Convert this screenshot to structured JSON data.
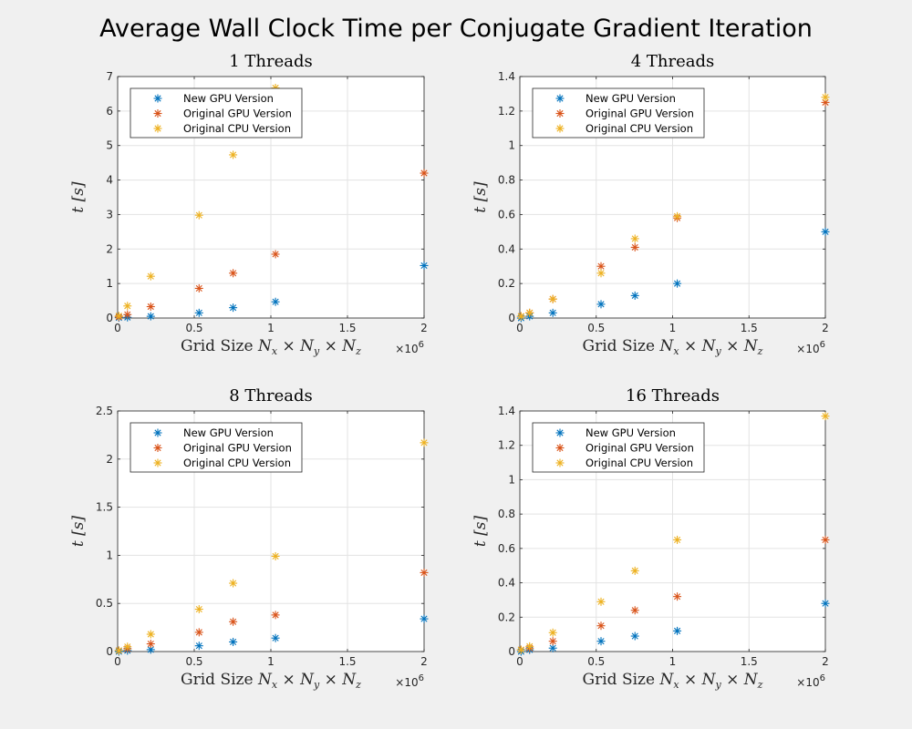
{
  "suptitle": "Average Wall Clock Time per Conjugate Gradient Iteration",
  "colors": {
    "new_gpu": "#0072BD",
    "orig_gpu": "#D95319",
    "orig_cpu": "#EDB120"
  },
  "chart_data": [
    {
      "type": "scatter",
      "title": "1 Threads",
      "xlabel": "Grid Size",
      "xlabel_math": "N_x × N_y × N_z",
      "ylabel": "t [s]",
      "x_exponent_label": "×10^6",
      "xlim": [
        0,
        2000000
      ],
      "ylim": [
        0,
        7
      ],
      "xticks": [
        0,
        0.5,
        1,
        1.5,
        2
      ],
      "yticks": [
        0,
        1,
        2,
        3,
        4,
        5,
        6,
        7
      ],
      "yticklabels": [
        "0",
        "1",
        "2",
        "3",
        "4",
        "5",
        "6",
        "7"
      ],
      "grid": true,
      "legend_position": "top-left",
      "marker": "*",
      "x": [
        8000,
        64000,
        216000,
        531441,
        753571,
        1030301,
        2000000
      ],
      "series": [
        {
          "name": "New GPU Version",
          "y": [
            0.01,
            0.02,
            0.05,
            0.15,
            0.3,
            0.47,
            1.52
          ]
        },
        {
          "name": "Original GPU Version",
          "y": [
            0.03,
            0.1,
            0.33,
            0.86,
            1.3,
            1.85,
            4.2
          ]
        },
        {
          "name": "Original CPU Version",
          "y": [
            0.06,
            0.35,
            1.21,
            2.98,
            4.73,
            6.67,
            null
          ]
        }
      ]
    },
    {
      "type": "scatter",
      "title": "4 Threads",
      "xlabel": "Grid Size",
      "xlabel_math": "N_x × N_y × N_z",
      "ylabel": "t [s]",
      "x_exponent_label": "×10^6",
      "xlim": [
        0,
        2000000
      ],
      "ylim": [
        0,
        1.4
      ],
      "xticks": [
        0,
        0.5,
        1,
        1.5,
        2
      ],
      "yticks": [
        0,
        0.2,
        0.4,
        0.6,
        0.8,
        1,
        1.2,
        1.4
      ],
      "yticklabels": [
        "0",
        "0.2",
        "0.4",
        "0.6",
        "0.8",
        "1",
        "1.2",
        "1.4"
      ],
      "grid": true,
      "legend_position": "top-left",
      "marker": "*",
      "x": [
        8000,
        64000,
        216000,
        531441,
        753571,
        1030301,
        2000000
      ],
      "series": [
        {
          "name": "New GPU Version",
          "y": [
            0.0,
            0.01,
            0.03,
            0.08,
            0.13,
            0.2,
            0.5
          ]
        },
        {
          "name": "Original GPU Version",
          "y": [
            0.01,
            0.03,
            0.11,
            0.3,
            0.41,
            0.58,
            1.25
          ]
        },
        {
          "name": "Original CPU Version",
          "y": [
            0.01,
            0.03,
            0.11,
            0.26,
            0.46,
            0.59,
            1.28
          ]
        }
      ]
    },
    {
      "type": "scatter",
      "title": "8 Threads",
      "xlabel": "Grid Size",
      "xlabel_math": "N_x × N_y × N_z",
      "ylabel": "t [s]",
      "x_exponent_label": "×10^6",
      "xlim": [
        0,
        2000000
      ],
      "ylim": [
        0,
        2.5
      ],
      "xticks": [
        0,
        0.5,
        1,
        1.5,
        2
      ],
      "yticks": [
        0,
        0.5,
        1,
        1.5,
        2,
        2.5
      ],
      "yticklabels": [
        "0",
        "0.5",
        "1",
        "1.5",
        "2",
        "2.5"
      ],
      "grid": true,
      "legend_position": "top-left",
      "marker": "*",
      "x": [
        8000,
        64000,
        216000,
        531441,
        753571,
        1030301,
        2000000
      ],
      "series": [
        {
          "name": "New GPU Version",
          "y": [
            0.0,
            0.01,
            0.02,
            0.06,
            0.1,
            0.14,
            0.34
          ]
        },
        {
          "name": "Original GPU Version",
          "y": [
            0.01,
            0.03,
            0.08,
            0.2,
            0.31,
            0.38,
            0.82
          ]
        },
        {
          "name": "Original CPU Version",
          "y": [
            0.01,
            0.05,
            0.18,
            0.44,
            0.71,
            0.99,
            2.17
          ]
        }
      ]
    },
    {
      "type": "scatter",
      "title": "16 Threads",
      "xlabel": "Grid Size",
      "xlabel_math": "N_x × N_y × N_z",
      "ylabel": "t [s]",
      "x_exponent_label": "×10^6",
      "xlim": [
        0,
        2000000
      ],
      "ylim": [
        0,
        1.4
      ],
      "xticks": [
        0,
        0.5,
        1,
        1.5,
        2
      ],
      "yticks": [
        0,
        0.2,
        0.4,
        0.6,
        0.8,
        1,
        1.2,
        1.4
      ],
      "yticklabels": [
        "0",
        "0.2",
        "0.4",
        "0.6",
        "0.8",
        "1",
        "1.2",
        "1.4"
      ],
      "grid": true,
      "legend_position": "top-left",
      "marker": "*",
      "x": [
        8000,
        64000,
        216000,
        531441,
        753571,
        1030301,
        2000000
      ],
      "series": [
        {
          "name": "New GPU Version",
          "y": [
            0.0,
            0.01,
            0.02,
            0.06,
            0.09,
            0.12,
            0.28
          ]
        },
        {
          "name": "Original GPU Version",
          "y": [
            0.01,
            0.02,
            0.06,
            0.15,
            0.24,
            0.32,
            0.65
          ]
        },
        {
          "name": "Original CPU Version",
          "y": [
            0.01,
            0.03,
            0.11,
            0.29,
            0.47,
            0.65,
            1.37
          ]
        }
      ]
    }
  ]
}
